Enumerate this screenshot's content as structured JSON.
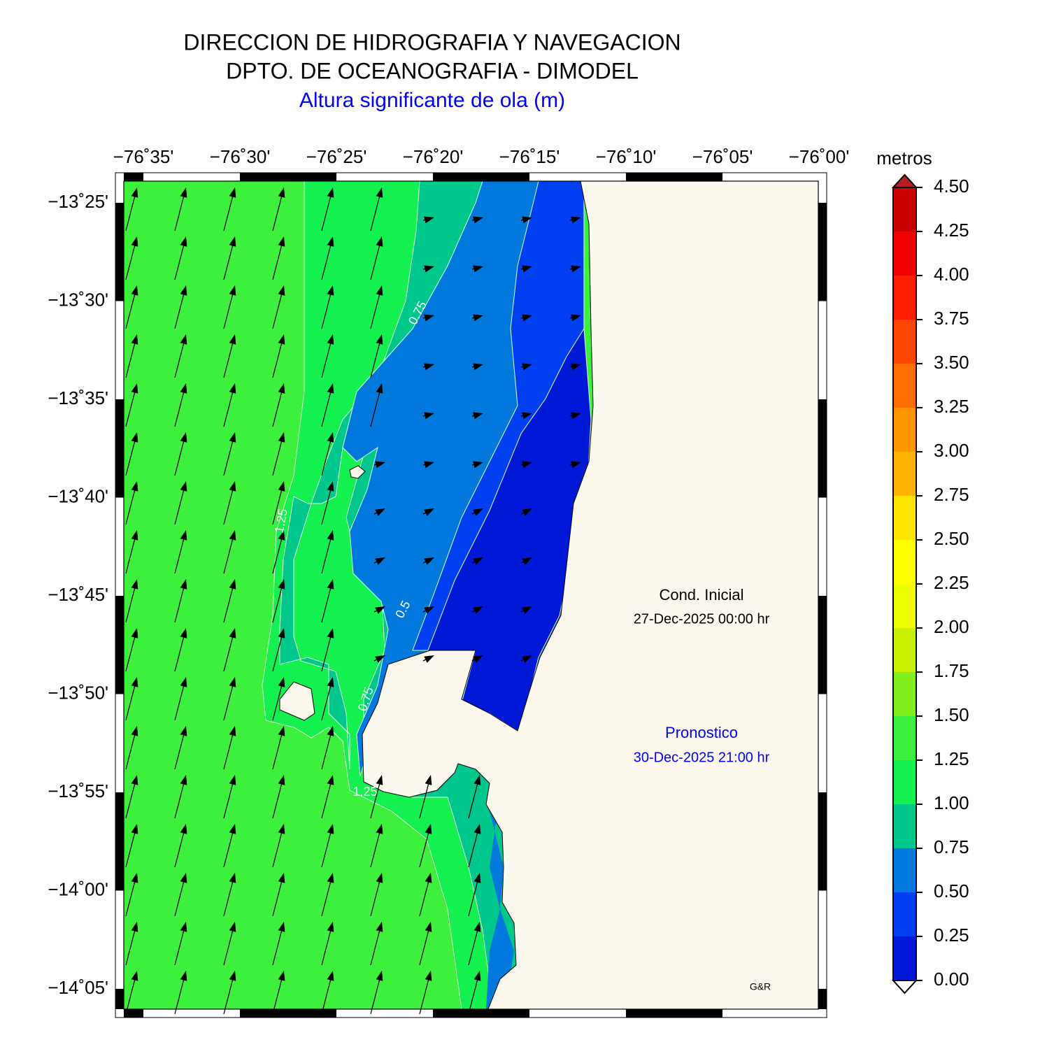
{
  "header": {
    "title": "DIRECCION DE HIDROGRAFIA Y NAVEGACION",
    "subtitle": "DPTO. DE OCEANOGRAFIA - DIMODEL",
    "variable": "Altura significante de ola (m)"
  },
  "map": {
    "lon_labels": [
      "−76˚35'",
      "−76˚30'",
      "−76˚25'",
      "−76˚20'",
      "−76˚15'",
      "−76˚10'",
      "−76˚05'",
      "−76˚00'"
    ],
    "lat_labels": [
      "−13˚25'",
      "−13˚30'",
      "−13˚35'",
      "−13˚40'",
      "−13˚45'",
      "−13˚50'",
      "−13˚55'",
      "−14˚00'",
      "−14˚05'"
    ],
    "contour_labels": [
      "0.75",
      "1.25",
      "0.5",
      "0.75",
      "1.25"
    ],
    "credit": "G&R"
  },
  "annotations": {
    "initial_label": "Cond. Inicial",
    "initial_date": "27-Dec-2025 00:00 hr",
    "forecast_label": "Pronostico",
    "forecast_date": "30-Dec-2025 21:00 hr"
  },
  "legend": {
    "unit": "metros",
    "ticks": [
      {
        "value": 0,
        "label": "0.00"
      },
      {
        "value": 0.25,
        "label": "0.25"
      },
      {
        "value": 0.5,
        "label": "0.50"
      },
      {
        "value": 0.75,
        "label": "0.75"
      },
      {
        "value": 1,
        "label": "1.00"
      },
      {
        "value": 1.25,
        "label": "1.25"
      },
      {
        "value": 1.5,
        "label": "1.50"
      },
      {
        "value": 1.75,
        "label": "1.75"
      },
      {
        "value": 2,
        "label": "2.00"
      },
      {
        "value": 2.25,
        "label": "2.25"
      },
      {
        "value": 2.5,
        "label": "2.50"
      },
      {
        "value": 2.75,
        "label": "2.75"
      },
      {
        "value": 3,
        "label": "3.00"
      },
      {
        "value": 3.25,
        "label": "3.25"
      },
      {
        "value": 3.5,
        "label": "3.50"
      },
      {
        "value": 3.75,
        "label": "3.75"
      },
      {
        "value": 4,
        "label": "4.00"
      },
      {
        "value": 4.25,
        "label": "4.25"
      },
      {
        "value": 4.5,
        "label": "4.50"
      }
    ],
    "colors": [
      "#0019d6",
      "#0040f0",
      "#0078dc",
      "#00c88c",
      "#14f050",
      "#3cf03c",
      "#82f01e",
      "#c8f000",
      "#f0ff00",
      "#ffff00",
      "#ffe600",
      "#ffb400",
      "#ff9600",
      "#ff6e00",
      "#ff4600",
      "#ff1e00",
      "#f00000",
      "#c80000"
    ],
    "over_color": "#b41e1e",
    "under_color": "#ffffff"
  }
}
